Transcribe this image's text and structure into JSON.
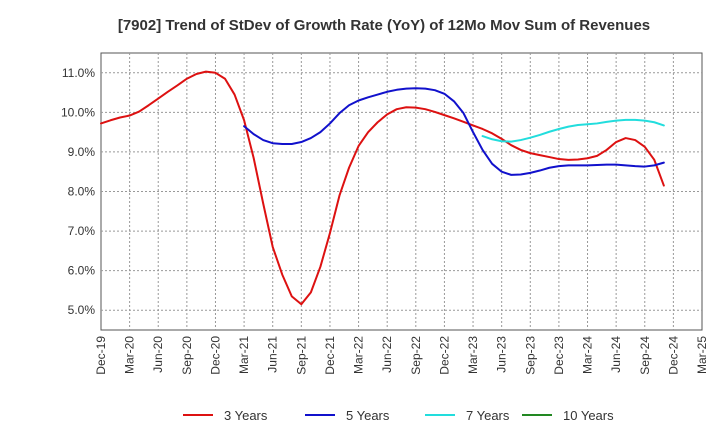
{
  "chart_data": {
    "type": "line",
    "title": "[7902]  Trend of StDev of Growth Rate (YoY) of 12Mo Mov Sum of Revenues",
    "xlabel": "",
    "ylabel": "",
    "ylim": [
      4.5,
      11.5
    ],
    "yticks": [
      5.0,
      6.0,
      7.0,
      8.0,
      9.0,
      10.0,
      11.0
    ],
    "ytick_labels": [
      "5.0%",
      "6.0%",
      "7.0%",
      "8.0%",
      "9.0%",
      "10.0%",
      "11.0%"
    ],
    "x_tick_labels": [
      "Dec-19",
      "Mar-20",
      "Jun-20",
      "Sep-20",
      "Dec-20",
      "Mar-21",
      "Jun-21",
      "Sep-21",
      "Dec-21",
      "Mar-22",
      "Jun-22",
      "Sep-22",
      "Dec-22",
      "Mar-23",
      "Jun-23",
      "Sep-23",
      "Dec-23",
      "Mar-24",
      "Jun-24",
      "Sep-24",
      "Dec-24",
      "Mar-25"
    ],
    "x_range_months": [
      0,
      63
    ],
    "grid": true,
    "legend_position": "bottom",
    "series": [
      {
        "name": "3 Years",
        "color": "#dd1111",
        "start_month": 0,
        "values": [
          9.72,
          9.8,
          9.87,
          9.92,
          10.02,
          10.18,
          10.35,
          10.52,
          10.68,
          10.85,
          10.97,
          11.03,
          11.0,
          10.85,
          10.45,
          9.8,
          8.85,
          7.7,
          6.6,
          5.9,
          5.35,
          5.15,
          5.45,
          6.1,
          6.95,
          7.9,
          8.6,
          9.15,
          9.5,
          9.75,
          9.95,
          10.08,
          10.13,
          10.12,
          10.08,
          10.01,
          9.93,
          9.85,
          9.76,
          9.67,
          9.58,
          9.47,
          9.33,
          9.17,
          9.05,
          8.97,
          8.92,
          8.87,
          8.82,
          8.8,
          8.81,
          8.84,
          8.9,
          9.05,
          9.25,
          9.35,
          9.3,
          9.13,
          8.8,
          8.15
        ]
      },
      {
        "name": "5 Years",
        "color": "#1111cc",
        "start_month": 15,
        "values": [
          9.65,
          9.45,
          9.3,
          9.22,
          9.2,
          9.2,
          9.25,
          9.35,
          9.5,
          9.72,
          9.98,
          10.18,
          10.3,
          10.38,
          10.45,
          10.52,
          10.57,
          10.6,
          10.61,
          10.6,
          10.56,
          10.47,
          10.28,
          9.98,
          9.5,
          9.05,
          8.7,
          8.5,
          8.42,
          8.43,
          8.47,
          8.53,
          8.6,
          8.64,
          8.66,
          8.66,
          8.66,
          8.67,
          8.68,
          8.68,
          8.66,
          8.64,
          8.63,
          8.66,
          8.73
        ]
      },
      {
        "name": "7 Years",
        "color": "#22dddd",
        "start_month": 40,
        "values": [
          9.4,
          9.32,
          9.27,
          9.26,
          9.3,
          9.36,
          9.43,
          9.51,
          9.58,
          9.64,
          9.68,
          9.7,
          9.72,
          9.76,
          9.79,
          9.81,
          9.81,
          9.79,
          9.75,
          9.67
        ]
      },
      {
        "name": "10 Years",
        "color": "#228822",
        "start_month": 0,
        "values": []
      }
    ]
  }
}
